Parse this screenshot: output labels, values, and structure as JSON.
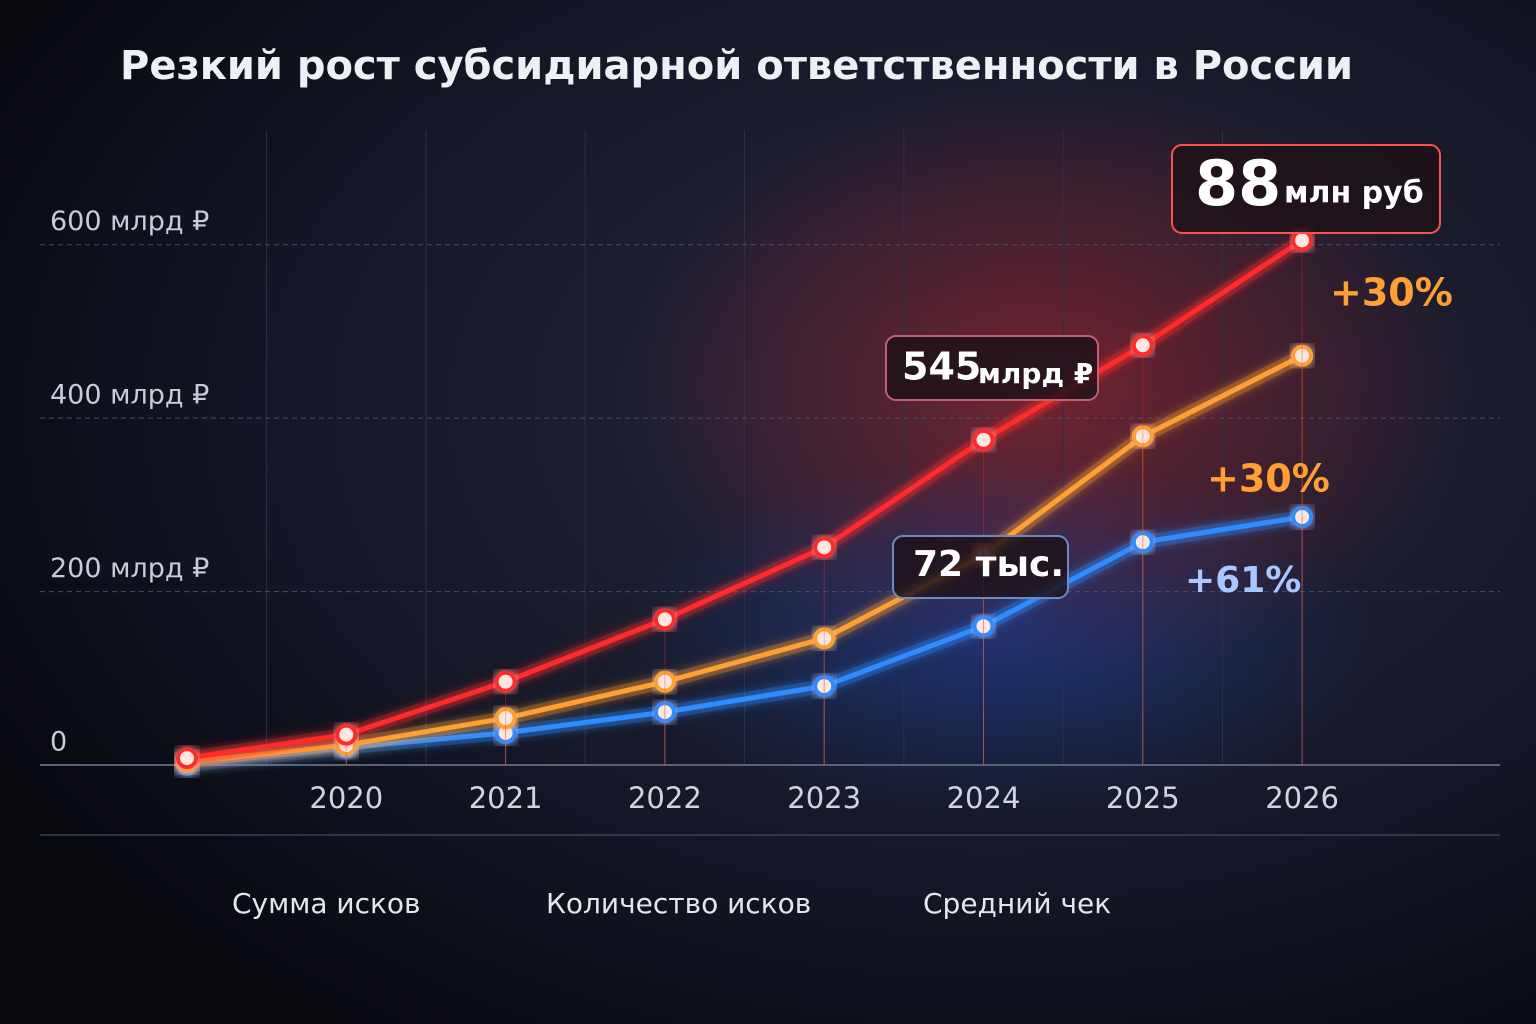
{
  "chart_data": {
    "type": "line",
    "title": "Резкий рост субсидиарной ответственности в России",
    "categories": [
      null,
      "2020",
      "2021",
      "2022",
      "2023",
      "2024",
      "2025",
      "2026"
    ],
    "series": [
      {
        "name": "Сумма исков",
        "color": "#ff2a2a",
        "values": [
          8,
          35,
          96,
          168,
          251,
          375,
          484,
          605
        ]
      },
      {
        "name": "Количество исков",
        "color": "#2f8cff",
        "values": [
          0,
          20,
          37,
          61,
          91,
          160,
          257,
          286
        ]
      },
      {
        "name": "Средний чек",
        "color": "#ffa030",
        "values": [
          3,
          23,
          54,
          96,
          146,
          242,
          379,
          472
        ]
      }
    ],
    "ylim": [
      0,
      700
    ],
    "yticks": [
      0,
      {
        "value": 200,
        "label": "200 млрд ₽"
      },
      {
        "value": 400,
        "label": "400 млрд ₽"
      },
      {
        "value": 600,
        "label": "600 млрд ₽"
      }
    ],
    "grid": true,
    "annotations": [
      {
        "value": "88",
        "unit": "млн руб"
      },
      {
        "value": "545",
        "unit": "млрд ₽"
      },
      {
        "value": "72 тыс."
      },
      {
        "value": "+30%"
      },
      {
        "value": "+30%"
      },
      {
        "value": "+61%"
      }
    ]
  }
}
